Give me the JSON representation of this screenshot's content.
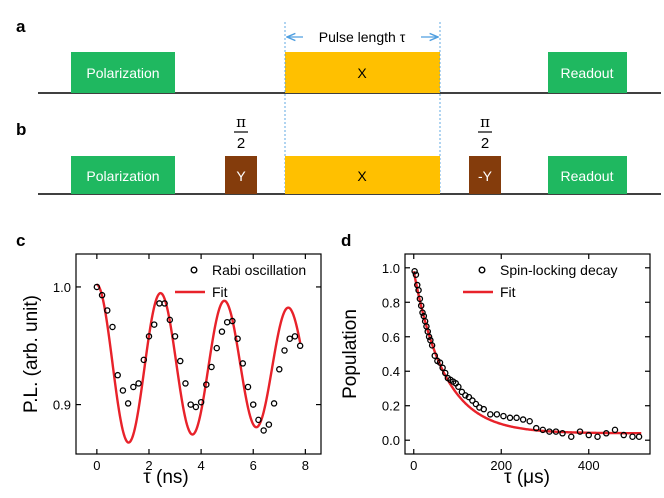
{
  "panel_labels": {
    "a": "a",
    "b": "b",
    "c": "c",
    "d": "d"
  },
  "colors": {
    "green": "#1fb860",
    "gold": "#ffc000",
    "brown": "#843c0c",
    "axis": "#000000",
    "fit": "#e8222a",
    "arrow": "#4f9fe0"
  },
  "sequence_a": {
    "polarization": "Polarization",
    "x_pulse": "X",
    "readout": "Readout",
    "pulse_length_label": "Pulse length τ"
  },
  "sequence_b": {
    "polarization": "Polarization",
    "y_pulse": "Y",
    "x_pulse": "X",
    "neg_y_pulse": "-Y",
    "readout": "Readout",
    "frac_num": "π",
    "frac_den": "2"
  },
  "chart_data": [
    {
      "panel": "c",
      "type": "scatter",
      "title": "",
      "xlabel": "τ (ns)",
      "ylabel": "P.L. (arb. unit)",
      "xlim": [
        -0.8,
        8.6
      ],
      "ylim": [
        0.858,
        1.028
      ],
      "xticks": [
        0,
        2,
        4,
        6,
        8
      ],
      "yticks": [
        0.9,
        1.0
      ],
      "xtick_labels": [
        "0",
        "2",
        "4",
        "6",
        "8"
      ],
      "ytick_labels": [
        "0.9",
        "1.0"
      ],
      "legend": {
        "position": "top-right",
        "entries": [
          "Rabi oscillation",
          "Fit"
        ]
      },
      "series": [
        {
          "name": "Rabi oscillation",
          "kind": "markers",
          "x": [
            0.0,
            0.2,
            0.4,
            0.6,
            0.8,
            1.0,
            1.2,
            1.4,
            1.6,
            1.8,
            2.0,
            2.2,
            2.4,
            2.6,
            2.8,
            3.0,
            3.2,
            3.4,
            3.6,
            3.8,
            4.0,
            4.2,
            4.4,
            4.6,
            4.8,
            5.0,
            5.2,
            5.4,
            5.6,
            5.8,
            6.0,
            6.2,
            6.4,
            6.6,
            6.8,
            7.0,
            7.2,
            7.4,
            7.6,
            7.8
          ],
          "y": [
            1.0,
            0.993,
            0.98,
            0.966,
            0.925,
            0.912,
            0.901,
            0.915,
            0.918,
            0.938,
            0.958,
            0.968,
            0.986,
            0.986,
            0.972,
            0.958,
            0.937,
            0.918,
            0.9,
            0.898,
            0.902,
            0.917,
            0.932,
            0.948,
            0.962,
            0.97,
            0.971,
            0.956,
            0.935,
            0.915,
            0.9,
            0.887,
            0.878,
            0.883,
            0.901,
            0.93,
            0.946,
            0.956,
            0.958,
            0.95
          ]
        },
        {
          "name": "Fit",
          "kind": "line",
          "model": {
            "offset": 0.933,
            "amplitude": 0.069,
            "period_ns": 2.45,
            "decay_ns": 22
          },
          "x_range": [
            0,
            7.8
          ]
        }
      ]
    },
    {
      "panel": "d",
      "type": "scatter",
      "title": "",
      "xlabel": "τ (μs)",
      "ylabel": "Population",
      "xlim": [
        -20,
        540
      ],
      "ylim": [
        -0.08,
        1.08
      ],
      "xticks": [
        0,
        200,
        400
      ],
      "yticks": [
        0.0,
        0.2,
        0.4,
        0.6,
        0.8,
        1.0
      ],
      "xtick_labels": [
        "0",
        "200",
        "400"
      ],
      "ytick_labels": [
        "0.0",
        "0.2",
        "0.4",
        "0.6",
        "0.8",
        "1.0"
      ],
      "legend": {
        "position": "top-right",
        "entries": [
          "Spin-locking decay",
          "Fit"
        ]
      },
      "series": [
        {
          "name": "Spin-locking decay",
          "kind": "markers",
          "x": [
            2,
            5,
            8,
            11,
            14,
            17,
            20,
            23,
            26,
            29,
            32,
            35,
            38,
            42,
            48,
            54,
            60,
            66,
            72,
            78,
            84,
            90,
            96,
            102,
            110,
            118,
            126,
            134,
            142,
            150,
            160,
            175,
            190,
            205,
            220,
            235,
            250,
            265,
            280,
            295,
            310,
            325,
            340,
            360,
            380,
            400,
            420,
            440,
            460,
            480,
            500,
            515
          ],
          "y": [
            0.98,
            0.96,
            0.9,
            0.87,
            0.82,
            0.78,
            0.74,
            0.72,
            0.69,
            0.66,
            0.63,
            0.6,
            0.58,
            0.55,
            0.49,
            0.46,
            0.45,
            0.42,
            0.39,
            0.36,
            0.35,
            0.34,
            0.33,
            0.31,
            0.28,
            0.26,
            0.25,
            0.23,
            0.21,
            0.19,
            0.18,
            0.15,
            0.15,
            0.14,
            0.13,
            0.13,
            0.12,
            0.11,
            0.07,
            0.06,
            0.05,
            0.05,
            0.04,
            0.02,
            0.05,
            0.03,
            0.02,
            0.04,
            0.06,
            0.03,
            0.02,
            0.02
          ]
        },
        {
          "name": "Fit",
          "kind": "line",
          "model": {
            "offset": 0.04,
            "amplitude": 0.94,
            "decay_us": 70
          },
          "x_range": [
            0,
            520
          ]
        }
      ]
    }
  ]
}
